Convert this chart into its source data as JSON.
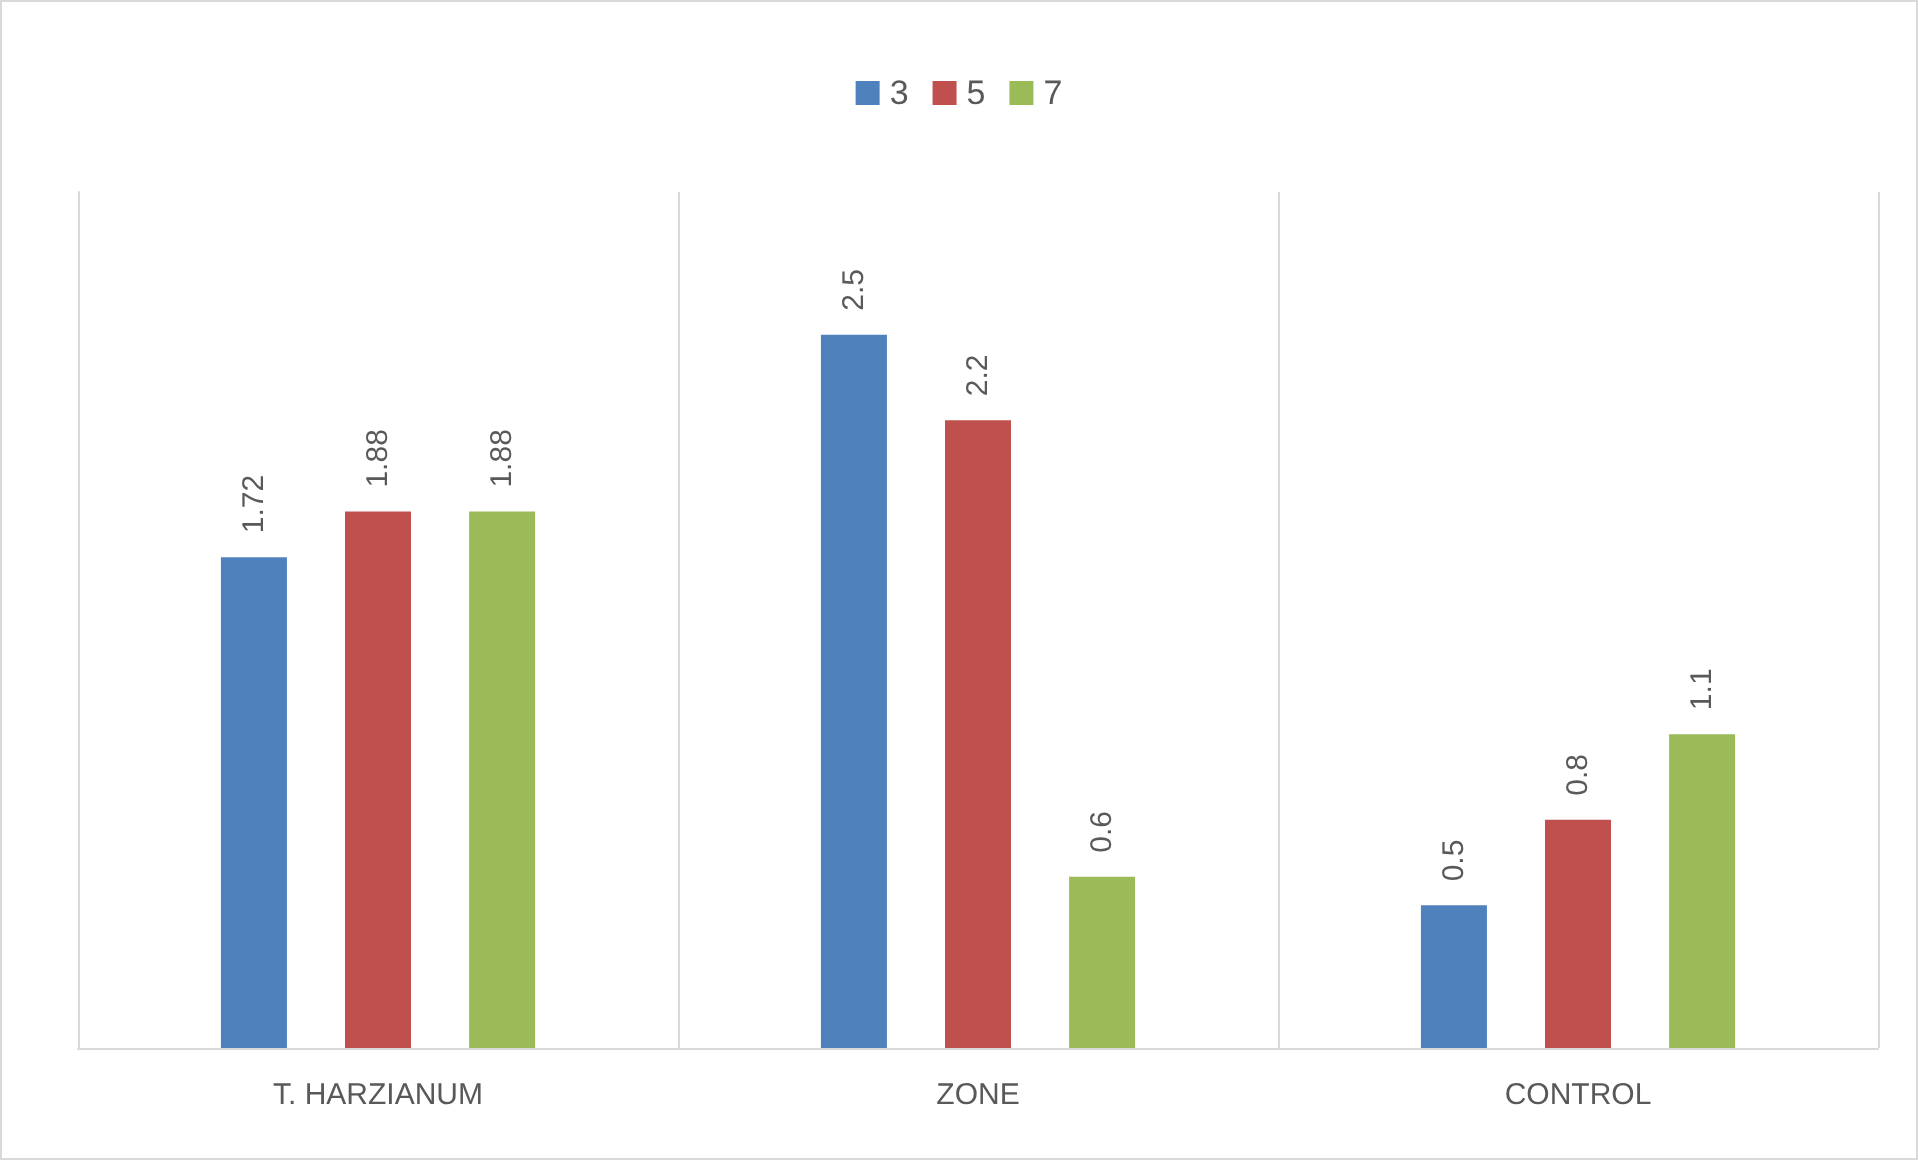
{
  "chart_data": {
    "type": "bar",
    "categories": [
      "T. HARZIANUM",
      "ZONE",
      "CONTROL"
    ],
    "series": [
      {
        "name": "3",
        "color": "#4f81bd",
        "values": [
          1.72,
          2.5,
          0.5
        ]
      },
      {
        "name": "5",
        "color": "#c0504d",
        "values": [
          1.88,
          2.2,
          0.8
        ]
      },
      {
        "name": "7",
        "color": "#9bbb59",
        "values": [
          1.88,
          0.6,
          1.1
        ]
      }
    ],
    "ylim": [
      0,
      3
    ],
    "data_labels": true,
    "grid": "x",
    "legend": "top"
  }
}
